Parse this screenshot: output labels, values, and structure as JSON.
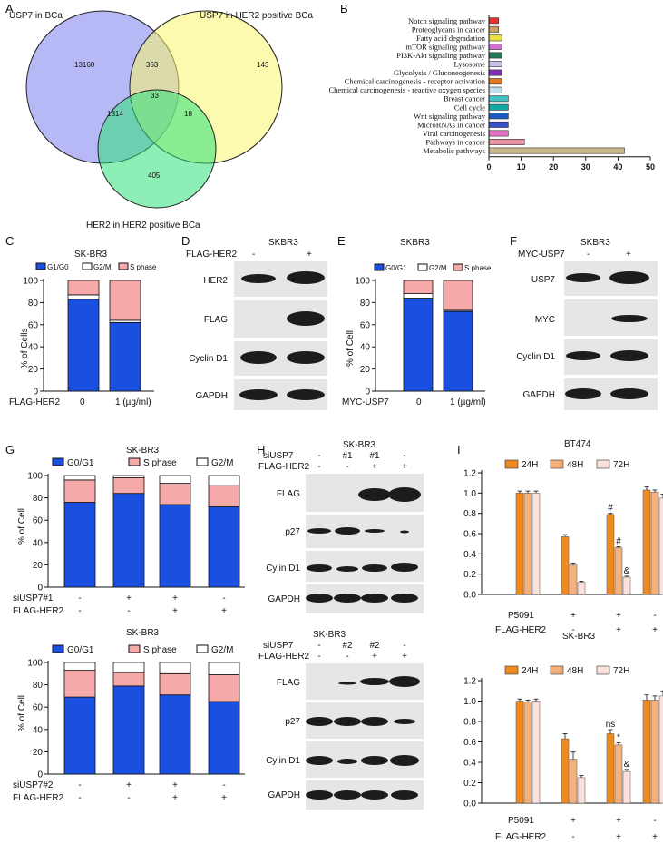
{
  "panels": [
    "A",
    "B",
    "C",
    "D",
    "E",
    "F",
    "G",
    "H",
    "I"
  ],
  "venn": {
    "labels": [
      "USP7 in BCa",
      "USP7 in HER2 positive BCa",
      "HER2 in HER2 positive BCa"
    ],
    "counts": {
      "a": "13160",
      "b": "143",
      "c": "405",
      "ab": "353",
      "ac": "1314",
      "bc": "18",
      "abc": "33"
    },
    "colors": [
      "#7b7ff0",
      "#f7f56e",
      "#2fe27a"
    ]
  },
  "panel_c": {
    "title": "SK-BR3",
    "condition": "FLAG-HER2",
    "xticks": [
      "0",
      "1 (µg/ml)"
    ],
    "ylabel": "% of Cells"
  },
  "panel_d": {
    "title": "SKBR3",
    "header": "FLAG-HER2",
    "lanes": [
      "-",
      "+"
    ],
    "rows": [
      "HER2",
      "FLAG",
      "Cyclin D1",
      "GAPDH"
    ]
  },
  "panel_e": {
    "title": "SKBR3",
    "condition": "MYC-USP7",
    "xticks": [
      "0",
      "1 (µg/ml)"
    ],
    "ylabel": "% of Cell"
  },
  "panel_f": {
    "title": "SKBR3",
    "header": "MYC-USP7",
    "lanes": [
      "-",
      "+"
    ],
    "rows": [
      "USP7",
      "MYC",
      "Cyclin D1",
      "GAPDH"
    ]
  },
  "panel_g": {
    "top": {
      "title": "SK-BR3",
      "si": "siUSP7#1",
      "ylabel": "% of Cell"
    },
    "bottom": {
      "title": "SK-BR3",
      "si": "siUSP7#2",
      "ylabel": "% of Cell"
    },
    "her2": "FLAG-HER2",
    "si_signs": [
      "-",
      "+",
      "+",
      "-"
    ],
    "her2_signs": [
      "-",
      "-",
      "+",
      "+"
    ]
  },
  "panel_h": {
    "top": {
      "title": "SK-BR3",
      "si_label": "siUSP7",
      "si_lanes": [
        "-",
        "#1",
        "#1",
        "-"
      ],
      "rows": [
        "FLAG",
        "p27",
        "Cylin D1",
        "GAPDH"
      ]
    },
    "bottom": {
      "title": "SK-BR3",
      "si_label": "siUSP7",
      "si_lanes": [
        "-",
        "#2",
        "#2",
        "-"
      ],
      "rows": [
        "FLAG",
        "p27",
        "Cylin D1",
        "GAPDH"
      ]
    },
    "her2_label": "FLAG-HER2",
    "her2_lanes": [
      "-",
      "-",
      "+",
      "+"
    ]
  },
  "panel_i": {
    "top": {
      "title": "BT474",
      "annotations": [
        "#",
        "#",
        "&"
      ]
    },
    "bottom": {
      "title": "SK-BR3",
      "annotations": [
        "ns",
        "*",
        "&"
      ]
    },
    "legend": [
      "24H",
      "48H",
      "72H"
    ],
    "rows": [
      "P5091",
      "FLAG-HER2"
    ],
    "p5091_signs": [
      "-",
      "+",
      "+",
      "-"
    ],
    "her2_signs": [
      "-",
      "-",
      "+",
      "+"
    ]
  },
  "colors": {
    "g1": "#1b4fe0",
    "s": "#f5a9a9",
    "g2": "#ffffff",
    "h24": "#f08a1f",
    "h48": "#f6b07a",
    "h72": "#fbe0dc"
  },
  "chart_data": [
    {
      "type": "bar",
      "orientation": "horizontal",
      "panel": "B",
      "categories": [
        "Notch signaling pathway",
        "Proteoglycans in cancer",
        "Fatty acid degradation",
        "mTOR signaling pathway",
        "PI3K-Akt signaling pathway",
        "Lysosome",
        "Glycolysis / Gluconeogenesis",
        "Chemical carcinogenesis - receptor activation",
        "Chemical carcinogenesis - reactive oxygen species",
        "Breast cancer",
        "Cell cycle",
        "Wnt signaling pathway",
        "MicroRNAs in cancer",
        "Viral carcinogenesis",
        "Pathways in cancer",
        "Metabolic pathways"
      ],
      "values": [
        3,
        3,
        4,
        4,
        4,
        4,
        4,
        4,
        4,
        6,
        6,
        6,
        6,
        6,
        11,
        42
      ],
      "colors": [
        "#e53030",
        "#c8a060",
        "#e8e040",
        "#d070d0",
        "#1f7a55",
        "#c8c0e8",
        "#7a30b0",
        "#e07820",
        "#c0dcea",
        "#40c0c0",
        "#10a8a0",
        "#1f5ac0",
        "#3850c8",
        "#e070c0",
        "#e890a0",
        "#c8b88a"
      ],
      "xticks": [
        "0",
        "10",
        "20",
        "30",
        "40",
        "50"
      ],
      "xlim": [
        0,
        50
      ]
    },
    {
      "type": "bar",
      "stacked": true,
      "panel": "C",
      "categories": [
        "0",
        "1 (µg/ml)"
      ],
      "series": [
        {
          "name": "G1/G0",
          "values": [
            83,
            62
          ]
        },
        {
          "name": "G2/M",
          "values": [
            4,
            2
          ]
        },
        {
          "name": "S phase",
          "values": [
            13,
            36
          ]
        }
      ],
      "ylim": [
        0,
        100
      ],
      "yticks": [
        "0",
        "20",
        "40",
        "60",
        "80",
        "100"
      ],
      "ylabel": "% of Cells"
    },
    {
      "type": "bar",
      "stacked": true,
      "panel": "E",
      "categories": [
        "0",
        "1 (µg/ml)"
      ],
      "series": [
        {
          "name": "G0/G1",
          "values": [
            84,
            72
          ]
        },
        {
          "name": "G2/M",
          "values": [
            4,
            1
          ]
        },
        {
          "name": "S phase",
          "values": [
            12,
            27
          ]
        }
      ],
      "ylim": [
        0,
        100
      ],
      "yticks": [
        "0",
        "20",
        "40",
        "60",
        "80",
        "100"
      ],
      "ylabel": "% of Cell"
    },
    {
      "type": "bar",
      "stacked": true,
      "panel": "G-top",
      "categories": [
        "1",
        "2",
        "3",
        "4"
      ],
      "series": [
        {
          "name": "G0/G1",
          "values": [
            76,
            84,
            74,
            72
          ]
        },
        {
          "name": "S phase",
          "values": [
            20,
            14,
            19,
            19
          ]
        },
        {
          "name": "G2/M",
          "values": [
            4,
            2,
            7,
            9
          ]
        }
      ],
      "ylim": [
        0,
        100
      ],
      "yticks": [
        "0",
        "20",
        "40",
        "60",
        "80",
        "100"
      ],
      "ylabel": "% of Cell"
    },
    {
      "type": "bar",
      "stacked": true,
      "panel": "G-bottom",
      "categories": [
        "1",
        "2",
        "3",
        "4"
      ],
      "series": [
        {
          "name": "G0/G1",
          "values": [
            69,
            79,
            71,
            65
          ]
        },
        {
          "name": "S phase",
          "values": [
            24,
            12,
            19,
            24
          ]
        },
        {
          "name": "G2/M",
          "values": [
            7,
            9,
            10,
            11
          ]
        }
      ],
      "ylim": [
        0,
        100
      ],
      "yticks": [
        "0",
        "20",
        "40",
        "60",
        "80",
        "100"
      ],
      "ylabel": "% of Cell"
    },
    {
      "type": "bar",
      "panel": "I-top",
      "title": "BT474",
      "categories": [
        "1",
        "2",
        "3",
        "4"
      ],
      "series": [
        {
          "name": "24H",
          "values": [
            1.0,
            0.57,
            0.79,
            1.03
          ],
          "errors": [
            0.02,
            0.02,
            0.01,
            0.03
          ]
        },
        {
          "name": "48H",
          "values": [
            1.0,
            0.29,
            0.46,
            1.01
          ],
          "errors": [
            0.02,
            0.02,
            0.01,
            0.02
          ]
        },
        {
          "name": "72H",
          "values": [
            1.0,
            0.12,
            0.17,
            0.95
          ],
          "errors": [
            0.02,
            0.01,
            0.01,
            0.04
          ]
        }
      ],
      "ylim": [
        0,
        1.2
      ],
      "yticks": [
        "0.0",
        "0.2",
        "0.4",
        "0.6",
        "0.8",
        "1.0",
        "1.2"
      ]
    },
    {
      "type": "bar",
      "panel": "I-bottom",
      "title": "SK-BR3",
      "categories": [
        "1",
        "2",
        "3",
        "4"
      ],
      "series": [
        {
          "name": "24H",
          "values": [
            1.0,
            0.63,
            0.68,
            1.01
          ],
          "errors": [
            0.02,
            0.05,
            0.04,
            0.05
          ]
        },
        {
          "name": "48H",
          "values": [
            0.99,
            0.43,
            0.57,
            1.01
          ],
          "errors": [
            0.02,
            0.07,
            0.02,
            0.04
          ]
        },
        {
          "name": "72H",
          "values": [
            1.0,
            0.25,
            0.31,
            1.05
          ],
          "errors": [
            0.02,
            0.02,
            0.02,
            0.05
          ]
        }
      ],
      "ylim": [
        0,
        1.2
      ],
      "yticks": [
        "0.0",
        "0.2",
        "0.4",
        "0.6",
        "0.8",
        "1.0",
        "1.2"
      ]
    }
  ]
}
